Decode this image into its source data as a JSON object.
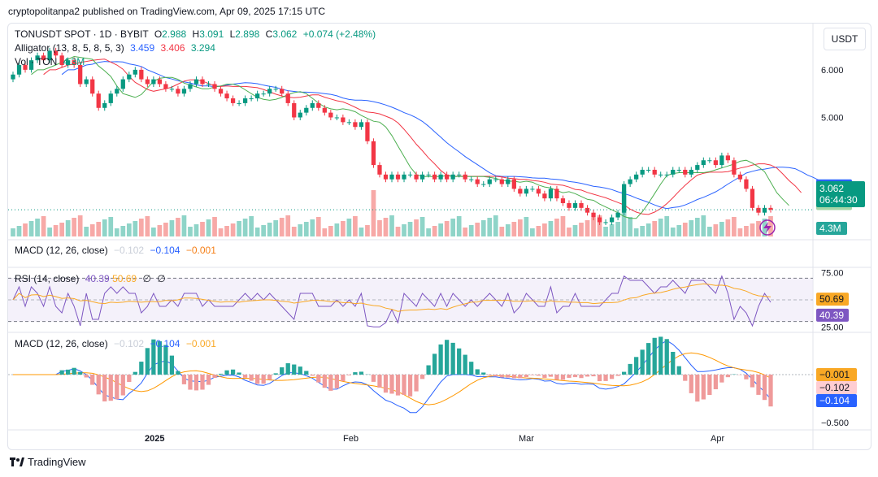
{
  "attribution": "cryptopolitanpa2 published on TradingView.com, Apr 09, 2025 17:15 UTC",
  "symbol": {
    "name": "TONUSDT SPOT · 1D · BYBIT",
    "o_label": "O",
    "o": "2.988",
    "h_label": "H",
    "h": "3.091",
    "l_label": "L",
    "l": "2.898",
    "c_label": "C",
    "c": "3.062",
    "change": "+0.074 (+2.48%)"
  },
  "alligator": {
    "label": "Alligator (13, 8, 5, 8, 5, 3)",
    "jaw": "3.459",
    "teeth": "3.406",
    "lips": "3.294"
  },
  "volume_legend": {
    "label": "Vol · TON",
    "value": "4.3M"
  },
  "macd_legend": {
    "label": "MACD (12, 26, close)",
    "hist": "−0.102",
    "macd": "−0.104",
    "signal": "−0.001"
  },
  "rsi_legend": {
    "label": "RSI (14, close)",
    "rsi": "40.39",
    "ma": "50.69",
    "d1": "∅",
    "d2": "∅"
  },
  "currency_button": "USDT",
  "footer_brand": "TradingView",
  "colors": {
    "up": "#089981",
    "down": "#f23645",
    "jaw": "#2962ff",
    "teeth": "#f23645",
    "lips": "#4caf50",
    "rsi": "#7e57c2",
    "rsi_ma": "#f9a825",
    "macd": "#2962ff",
    "signal": "#ff9800"
  },
  "chart_data": [
    {
      "type": "candlestick",
      "x_ticks": [
        "2025",
        "Feb",
        "Mar",
        "Apr"
      ],
      "y_ticks": [
        "6.000",
        "5.000"
      ],
      "y_range": [
        2.5,
        6.8
      ],
      "price_labels": {
        "jaw": "3.459",
        "teeth": "3.406",
        "lips": "3.294",
        "last": "3.062",
        "countdown": "06:44:30",
        "volume": "4.3M"
      },
      "closes": [
        5.9,
        6.1,
        6.0,
        6.2,
        6.3,
        6.2,
        6.4,
        6.3,
        6.1,
        6.2,
        6.1,
        5.7,
        5.8,
        5.5,
        5.2,
        5.3,
        5.5,
        5.6,
        5.8,
        5.9,
        6.0,
        5.8,
        5.7,
        5.8,
        5.7,
        5.6,
        5.6,
        5.5,
        5.6,
        5.7,
        5.8,
        5.7,
        5.7,
        5.6,
        5.5,
        5.4,
        5.3,
        5.3,
        5.4,
        5.4,
        5.5,
        5.5,
        5.6,
        5.6,
        5.5,
        5.3,
        5.0,
        5.1,
        5.2,
        5.3,
        5.2,
        5.1,
        5.0,
        5.0,
        4.9,
        4.9,
        4.8,
        4.9,
        4.5,
        4.0,
        3.8,
        3.7,
        3.8,
        3.7,
        3.8,
        3.8,
        3.7,
        3.8,
        3.8,
        3.7,
        3.8,
        3.7,
        3.8,
        3.8,
        3.7,
        3.7,
        3.6,
        3.6,
        3.7,
        3.7,
        3.6,
        3.7,
        3.5,
        3.4,
        3.5,
        3.5,
        3.4,
        3.3,
        3.5,
        3.3,
        3.2,
        3.1,
        3.2,
        3.1,
        3.0,
        2.9,
        2.8,
        2.8,
        2.9,
        3.0,
        3.6,
        3.7,
        3.8,
        3.9,
        3.9,
        3.8,
        3.8,
        3.8,
        3.9,
        3.9,
        3.8,
        3.9,
        4.0,
        4.1,
        4.1,
        4.0,
        4.2,
        4.1,
        3.8,
        3.7,
        3.5,
        3.1,
        3.0,
        3.1,
        3.062
      ],
      "volume_note": "volume bars shown below price"
    },
    {
      "type": "line",
      "title": "RSI (14, close)",
      "y_ticks": [
        "75.00",
        "25.00"
      ],
      "y_range": [
        20,
        80
      ],
      "labels": {
        "ma": "50.69",
        "rsi": "40.39"
      }
    },
    {
      "type": "line",
      "title": "MACD (12, 26, close)",
      "y_ticks": [
        "−0.500"
      ],
      "labels": {
        "signal": "−0.001",
        "hist": "−0.102",
        "macd": "−0.104"
      }
    }
  ]
}
